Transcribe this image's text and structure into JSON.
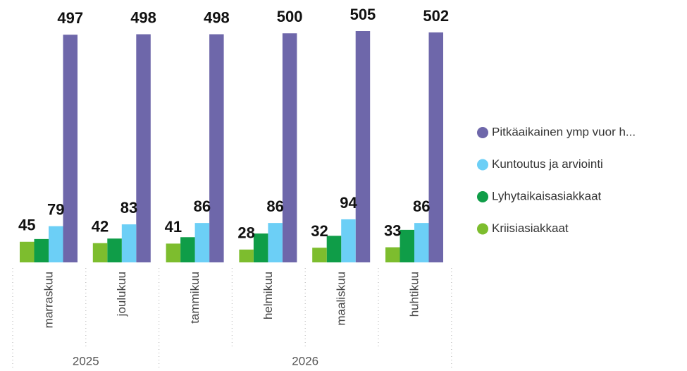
{
  "chart_data": {
    "type": "bar",
    "categories": [
      "marraskuu",
      "joulukuu",
      "tammikuu",
      "helmikuu",
      "maaliskuu",
      "huhtikuu"
    ],
    "year_groups": [
      {
        "name": "2025",
        "size": 2
      },
      {
        "name": "2026",
        "size": 4
      }
    ],
    "series": [
      {
        "name": "Pitkäaikainen ymp vuor h...",
        "color": "#6e67aa",
        "values": [
          497,
          498,
          498,
          500,
          505,
          502
        ],
        "labels": true
      },
      {
        "name": "Kuntoutus ja arviointi",
        "color": "#6ccff6",
        "values": [
          79,
          83,
          86,
          86,
          94,
          86
        ],
        "labels": true
      },
      {
        "name": "Lyhytaikaisasiakkaat",
        "color": "#0f9d48",
        "values": [
          51,
          52,
          55,
          63,
          58,
          71
        ],
        "labels": false
      },
      {
        "name": "Kriisiasiakkaat",
        "color": "#7dbd2e",
        "values": [
          45,
          42,
          41,
          28,
          32,
          33
        ],
        "labels": true
      }
    ],
    "ylim": [
      0,
      510
    ]
  }
}
